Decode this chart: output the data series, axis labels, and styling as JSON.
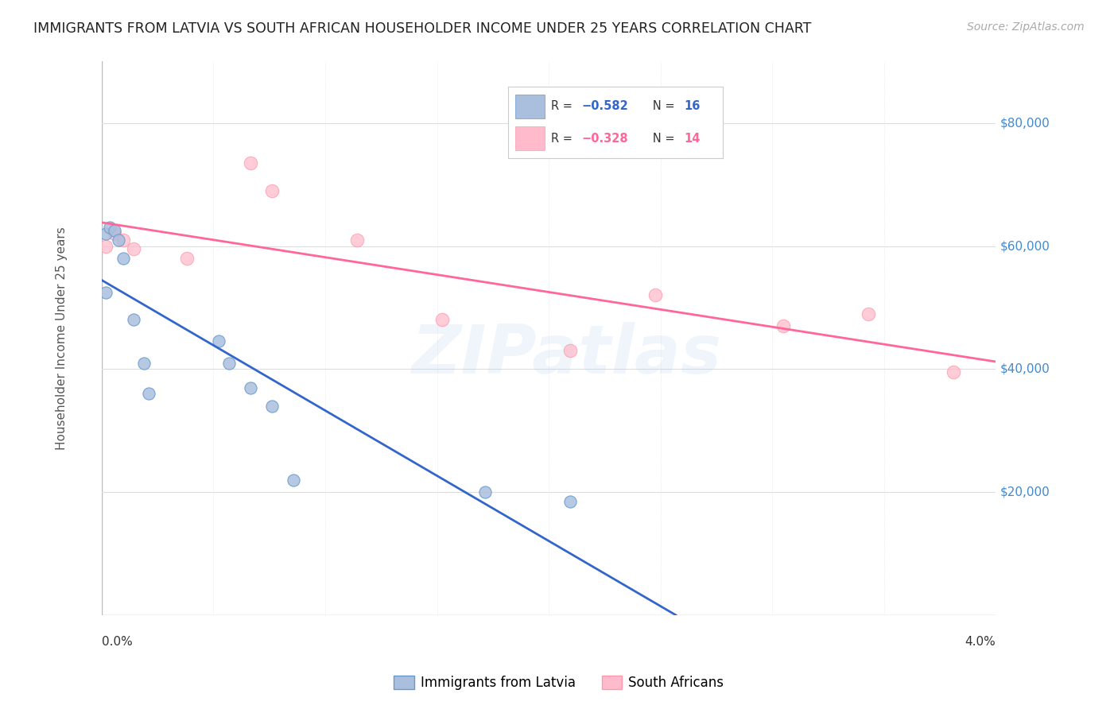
{
  "title": "IMMIGRANTS FROM LATVIA VS SOUTH AFRICAN HOUSEHOLDER INCOME UNDER 25 YEARS CORRELATION CHART",
  "source": "Source: ZipAtlas.com",
  "ylabel": "Householder Income Under 25 years",
  "legend_labels": [
    "Immigrants from Latvia",
    "South Africans"
  ],
  "blue_scatter_color": "#aabfdd",
  "blue_scatter_edge": "#6699cc",
  "pink_scatter_color": "#ffbbcc",
  "pink_scatter_edge": "#ff99aa",
  "blue_line_color": "#3366cc",
  "pink_line_color": "#ff6699",
  "ytick_labels": [
    "$20,000",
    "$40,000",
    "$60,000",
    "$80,000"
  ],
  "ytick_values": [
    20000,
    40000,
    60000,
    80000
  ],
  "ylim": [
    0,
    90000
  ],
  "xlim": [
    0.0,
    0.042
  ],
  "latvia_x": [
    0.0002,
    0.0004,
    0.0006,
    0.0008,
    0.0002,
    0.001,
    0.0015,
    0.002,
    0.0022,
    0.0055,
    0.006,
    0.007,
    0.008,
    0.009,
    0.018,
    0.022
  ],
  "latvia_y": [
    62000,
    63000,
    62500,
    61000,
    52500,
    58000,
    48000,
    41000,
    36000,
    44500,
    41000,
    37000,
    34000,
    22000,
    20000,
    18500
  ],
  "southafrica_x": [
    0.0002,
    0.0006,
    0.001,
    0.0015,
    0.004,
    0.007,
    0.008,
    0.012,
    0.016,
    0.022,
    0.026,
    0.032,
    0.036,
    0.04
  ],
  "southafrica_y": [
    60000,
    62000,
    61000,
    59500,
    58000,
    73500,
    69000,
    61000,
    48000,
    43000,
    52000,
    47000,
    49000,
    39500
  ],
  "marker_size": 120,
  "background_color": "#ffffff",
  "grid_color": "#dddddd",
  "axis_label_color": "#4488cc",
  "watermark_text": "ZIPatlas",
  "legend_r1": "R = −0.582",
  "legend_n1": "N = 16",
  "legend_r2": "R = −0.328",
  "legend_n2": "N = 14"
}
